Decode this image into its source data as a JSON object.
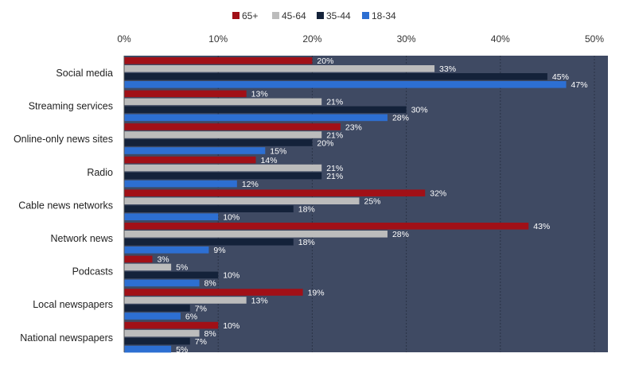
{
  "chart_data": {
    "type": "bar",
    "orientation": "horizontal",
    "title": "",
    "xlabel": "",
    "ylabel": "",
    "xlim": [
      0,
      50
    ],
    "x_ticks": [
      0,
      10,
      20,
      30,
      40,
      50
    ],
    "tick_labels": [
      "0%",
      "10%",
      "20%",
      "30%",
      "40%",
      "50%"
    ],
    "grid": true,
    "legend_position": "top-center",
    "plot_background": "#3f4a63",
    "categories": [
      "Social media",
      "Streaming services",
      "Online-only news sites",
      "Radio",
      "Cable news networks",
      "Network news",
      "Podcasts",
      "Local newspapers",
      "National newspapers"
    ],
    "series": [
      {
        "name": "65+",
        "color": "#a11017",
        "values": [
          20,
          13,
          23,
          14,
          32,
          43,
          3,
          19,
          10
        ]
      },
      {
        "name": "45-64",
        "color": "#bcbcbc",
        "values": [
          33,
          21,
          21,
          21,
          25,
          28,
          5,
          13,
          8
        ]
      },
      {
        "name": "35-44",
        "color": "#14223a",
        "values": [
          45,
          30,
          20,
          21,
          18,
          18,
          10,
          7,
          7
        ]
      },
      {
        "name": "18-34",
        "color": "#2d6fd2",
        "values": [
          47,
          28,
          15,
          12,
          10,
          9,
          8,
          6,
          5
        ]
      }
    ],
    "value_suffix": "%"
  }
}
